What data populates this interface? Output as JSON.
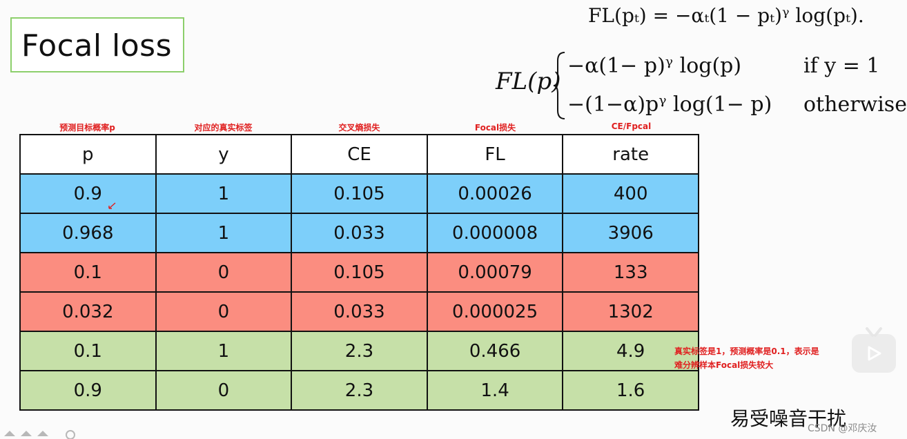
{
  "title": "Focal loss",
  "formula_top": "FL(pₜ) = −αₜ(1 − pₜ)ᵞ log(pₜ).",
  "formula_case": {
    "lhs": "FL(p)",
    "case1_expr": "−α(1− p)ᵞ log(p)",
    "case1_cond": "if  y = 1",
    "case2_expr": "−(1−α)pᵞ log(1− p)",
    "case2_cond": "otherwise,"
  },
  "column_notes": [
    "预测目标概率p",
    "对应的真实标签",
    "交叉熵损失",
    "Focal损失",
    "CE/Fpcal"
  ],
  "table": {
    "headers": [
      "p",
      "y",
      "CE",
      "FL",
      "rate"
    ],
    "rows": [
      {
        "group": "blue",
        "cells": [
          "0.9",
          "1",
          "0.105",
          "0.00026",
          "400"
        ]
      },
      {
        "group": "blue",
        "cells": [
          "0.968",
          "1",
          "0.033",
          "0.000008",
          "3906"
        ]
      },
      {
        "group": "red",
        "cells": [
          "0.1",
          "0",
          "0.105",
          "0.00079",
          "133"
        ]
      },
      {
        "group": "red",
        "cells": [
          "0.032",
          "0",
          "0.033",
          "0.000025",
          "1302"
        ]
      },
      {
        "group": "green",
        "cells": [
          "0.1",
          "1",
          "2.3",
          "0.466",
          "4.9"
        ]
      },
      {
        "group": "green",
        "cells": [
          "0.9",
          "0",
          "2.3",
          "1.4",
          "1.6"
        ]
      }
    ]
  },
  "note": {
    "line1": "真实标签是1，预测概率是0.1，表示是",
    "line2": "难分辨样本Focal损失较大"
  },
  "caption": "易受噪音干扰",
  "watermark": "CSDN @邓庆汝",
  "colors": {
    "blue_row": "#7dcffa",
    "red_row": "#fb8d80",
    "green_row": "#c6e0a8",
    "note_red": "#e02020",
    "title_border": "#8ccf6b"
  },
  "icons": [
    "play-icon",
    "cursor-arrow-icon"
  ]
}
